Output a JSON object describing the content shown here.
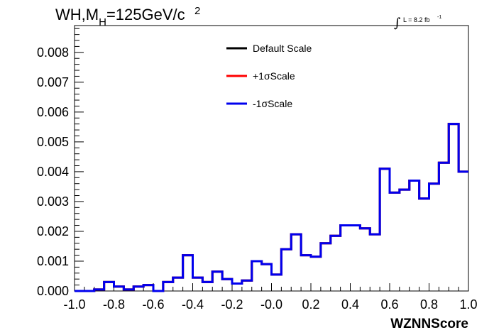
{
  "chart_data": {
    "type": "line",
    "title_main": "WH,M",
    "title_sub": "H",
    "title_rest": "=125GeV/c",
    "title_sup": "2",
    "lumi_symbol": "∫",
    "lumi_text": "L = 8.2 fb",
    "lumi_sup": "-1",
    "xlabel": "WZNNScore",
    "ylabel": "",
    "xlim": [
      -1.0,
      1.0
    ],
    "ylim": [
      0.0,
      0.0089
    ],
    "x_tick_labels": [
      "-1.0",
      "-0.8",
      "-0.6",
      "-0.4",
      "-0.2",
      "-0.0",
      "0.2",
      "0.4",
      "0.6",
      "0.8",
      "1.0"
    ],
    "y_tick_labels": [
      "0.000",
      "0.001",
      "0.002",
      "0.003",
      "0.004",
      "0.005",
      "0.006",
      "0.007",
      "0.008"
    ],
    "legend_placement": "top-center",
    "bin_edges": [
      -1.0,
      -0.95,
      -0.9,
      -0.85,
      -0.8,
      -0.75,
      -0.7,
      -0.65,
      -0.6,
      -0.55,
      -0.5,
      -0.45,
      -0.4,
      -0.35,
      -0.3,
      -0.25,
      -0.2,
      -0.15,
      -0.1,
      -0.05,
      0.0,
      0.05,
      0.1,
      0.15,
      0.2,
      0.25,
      0.3,
      0.35,
      0.4,
      0.45,
      0.5,
      0.55,
      0.6,
      0.65,
      0.7,
      0.75,
      0.8,
      0.85,
      0.9,
      0.95,
      1.0
    ],
    "series": [
      {
        "name": "Default Scale",
        "color": "#000000",
        "values": [
          0.0,
          0.0,
          5e-05,
          0.0003,
          0.00015,
          5e-05,
          0.00015,
          0.0002,
          0.0,
          0.0003,
          0.00045,
          0.0012,
          0.00045,
          0.0003,
          0.00065,
          0.0004,
          0.00025,
          0.00035,
          0.001,
          0.0009,
          0.00055,
          0.0014,
          0.0019,
          0.0012,
          0.00115,
          0.0016,
          0.00185,
          0.0022,
          0.0022,
          0.0021,
          0.0019,
          0.0041,
          0.0033,
          0.0034,
          0.0037,
          0.0031,
          0.0036,
          0.0043,
          0.0056,
          0.004
        ]
      },
      {
        "name": "+1σScale",
        "color": "#ff0000",
        "values": [
          0.0,
          0.0,
          5e-05,
          0.0003,
          0.00015,
          5e-05,
          0.00015,
          0.0002,
          0.0,
          0.0003,
          0.00045,
          0.0012,
          0.00045,
          0.0003,
          0.00065,
          0.0004,
          0.00025,
          0.00035,
          0.001,
          0.0009,
          0.00055,
          0.0014,
          0.0019,
          0.0012,
          0.00115,
          0.0016,
          0.00185,
          0.0022,
          0.0022,
          0.0021,
          0.0019,
          0.0041,
          0.0033,
          0.0034,
          0.0037,
          0.0031,
          0.0036,
          0.0043,
          0.0056,
          0.004
        ]
      },
      {
        "name": "-1σScale",
        "color": "#0000ee",
        "values": [
          0.0,
          0.0,
          5e-05,
          0.0003,
          0.00015,
          5e-05,
          0.00015,
          0.0002,
          0.0,
          0.0003,
          0.00045,
          0.0012,
          0.00045,
          0.0003,
          0.00065,
          0.0004,
          0.00025,
          0.00035,
          0.001,
          0.0009,
          0.00055,
          0.0014,
          0.0019,
          0.0012,
          0.00115,
          0.0016,
          0.00185,
          0.0022,
          0.0022,
          0.0021,
          0.0019,
          0.0041,
          0.0033,
          0.0034,
          0.0037,
          0.0031,
          0.0036,
          0.0043,
          0.0056,
          0.004
        ]
      }
    ]
  }
}
